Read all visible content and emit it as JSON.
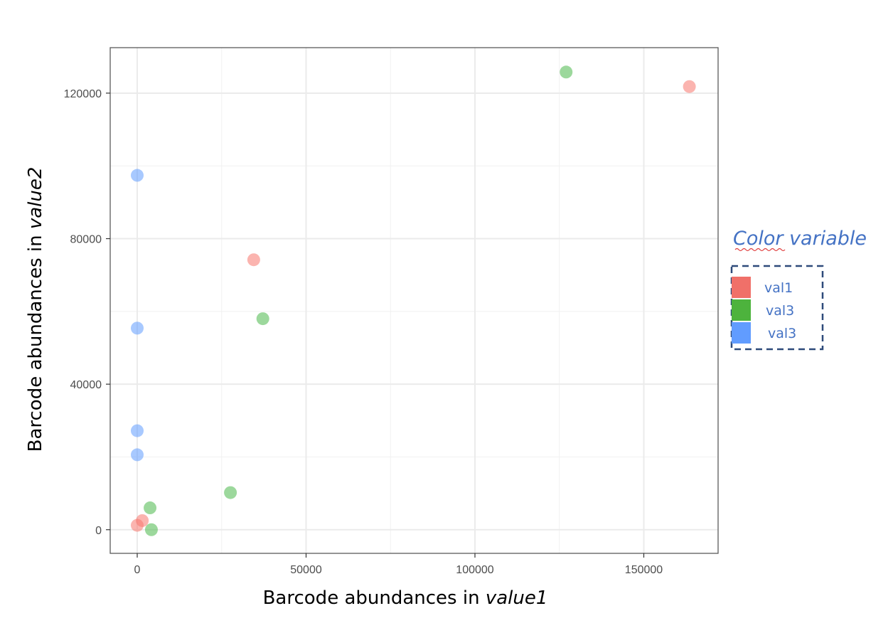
{
  "chart_data": {
    "type": "scatter",
    "xlabel_prefix": "Barcode abundances in ",
    "xlabel_var": "value1",
    "ylabel_prefix": "Barcode abundances in ",
    "ylabel_var": "value2",
    "xlim": [
      -8000,
      172000
    ],
    "ylim": [
      -6500,
      132500
    ],
    "x_ticks": [
      0,
      50000,
      100000,
      150000
    ],
    "y_ticks": [
      0,
      40000,
      80000,
      120000
    ],
    "x_tick_labels": [
      "0",
      "50000",
      "100000",
      "150000"
    ],
    "y_tick_labels": [
      "0",
      "40000",
      "80000",
      "120000"
    ],
    "grid": true,
    "legend": {
      "title": "Color variable",
      "placement": "right",
      "entries": [
        {
          "label": "val1",
          "color": "#f07069"
        },
        {
          "label": "val3",
          "color": "#4db33d"
        },
        {
          "label": "val3",
          "color": "#619cff"
        }
      ]
    },
    "series": [
      {
        "color": "#f8766d",
        "points": [
          [
            163500,
            121800
          ],
          [
            34500,
            74200
          ],
          [
            1500,
            2500
          ],
          [
            0,
            1200
          ]
        ]
      },
      {
        "color": "#4ab84a",
        "points": [
          [
            127000,
            125800
          ],
          [
            37200,
            58000
          ],
          [
            27600,
            10200
          ],
          [
            3800,
            6000
          ],
          [
            4200,
            0
          ]
        ]
      },
      {
        "color": "#619cff",
        "points": [
          [
            0,
            97400
          ],
          [
            0,
            55400
          ],
          [
            0,
            27200
          ],
          [
            0,
            20600
          ]
        ]
      }
    ]
  }
}
